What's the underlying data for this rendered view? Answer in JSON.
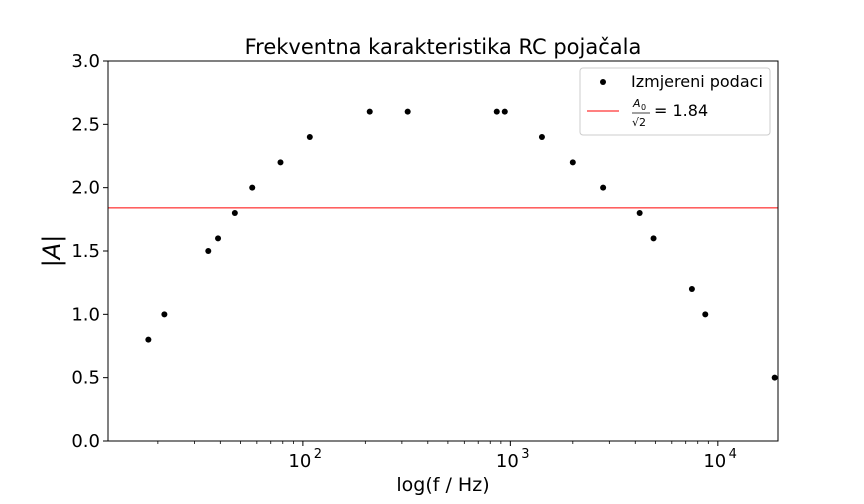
{
  "chart_data": {
    "type": "scatter",
    "title": "Frekventna karakteristika RC pojačala",
    "xlabel": "log(f / Hz)",
    "ylabel": "|A|",
    "xscale": "log",
    "xlim": [
      11.5,
      19500
    ],
    "ylim": [
      0,
      3.0
    ],
    "yticks": [
      0.0,
      0.5,
      1.0,
      1.5,
      2.0,
      2.5,
      3.0
    ],
    "ytick_labels": [
      "0.0",
      "0.5",
      "1.0",
      "1.5",
      "2.0",
      "2.5",
      "3.0"
    ],
    "xticks": [
      100,
      1000,
      10000
    ],
    "xtick_labels": [
      {
        "base": "10",
        "exp": "2"
      },
      {
        "base": "10",
        "exp": "3"
      },
      {
        "base": "10",
        "exp": "4"
      }
    ],
    "grid": false,
    "legend_position": "top-right",
    "series": [
      {
        "name": "Izmjereni podaci",
        "color": "#000000",
        "x": [
          18,
          21.5,
          35,
          39,
          47,
          57,
          78,
          108,
          210,
          320,
          860,
          940,
          1420,
          2000,
          2800,
          4200,
          4900,
          7500,
          8700,
          18800
        ],
        "y": [
          0.8,
          1.0,
          1.5,
          1.6,
          1.8,
          2.0,
          2.2,
          2.4,
          2.6,
          2.6,
          2.6,
          2.6,
          2.4,
          2.2,
          2.0,
          1.8,
          1.6,
          1.2,
          1.0,
          0.5
        ]
      }
    ],
    "reference_line": {
      "value": 1.84,
      "color": "#ff0000",
      "label_num_base": "A",
      "label_num_sub": "0",
      "label_den": "√2",
      "label_eq": "= 1.84"
    }
  }
}
